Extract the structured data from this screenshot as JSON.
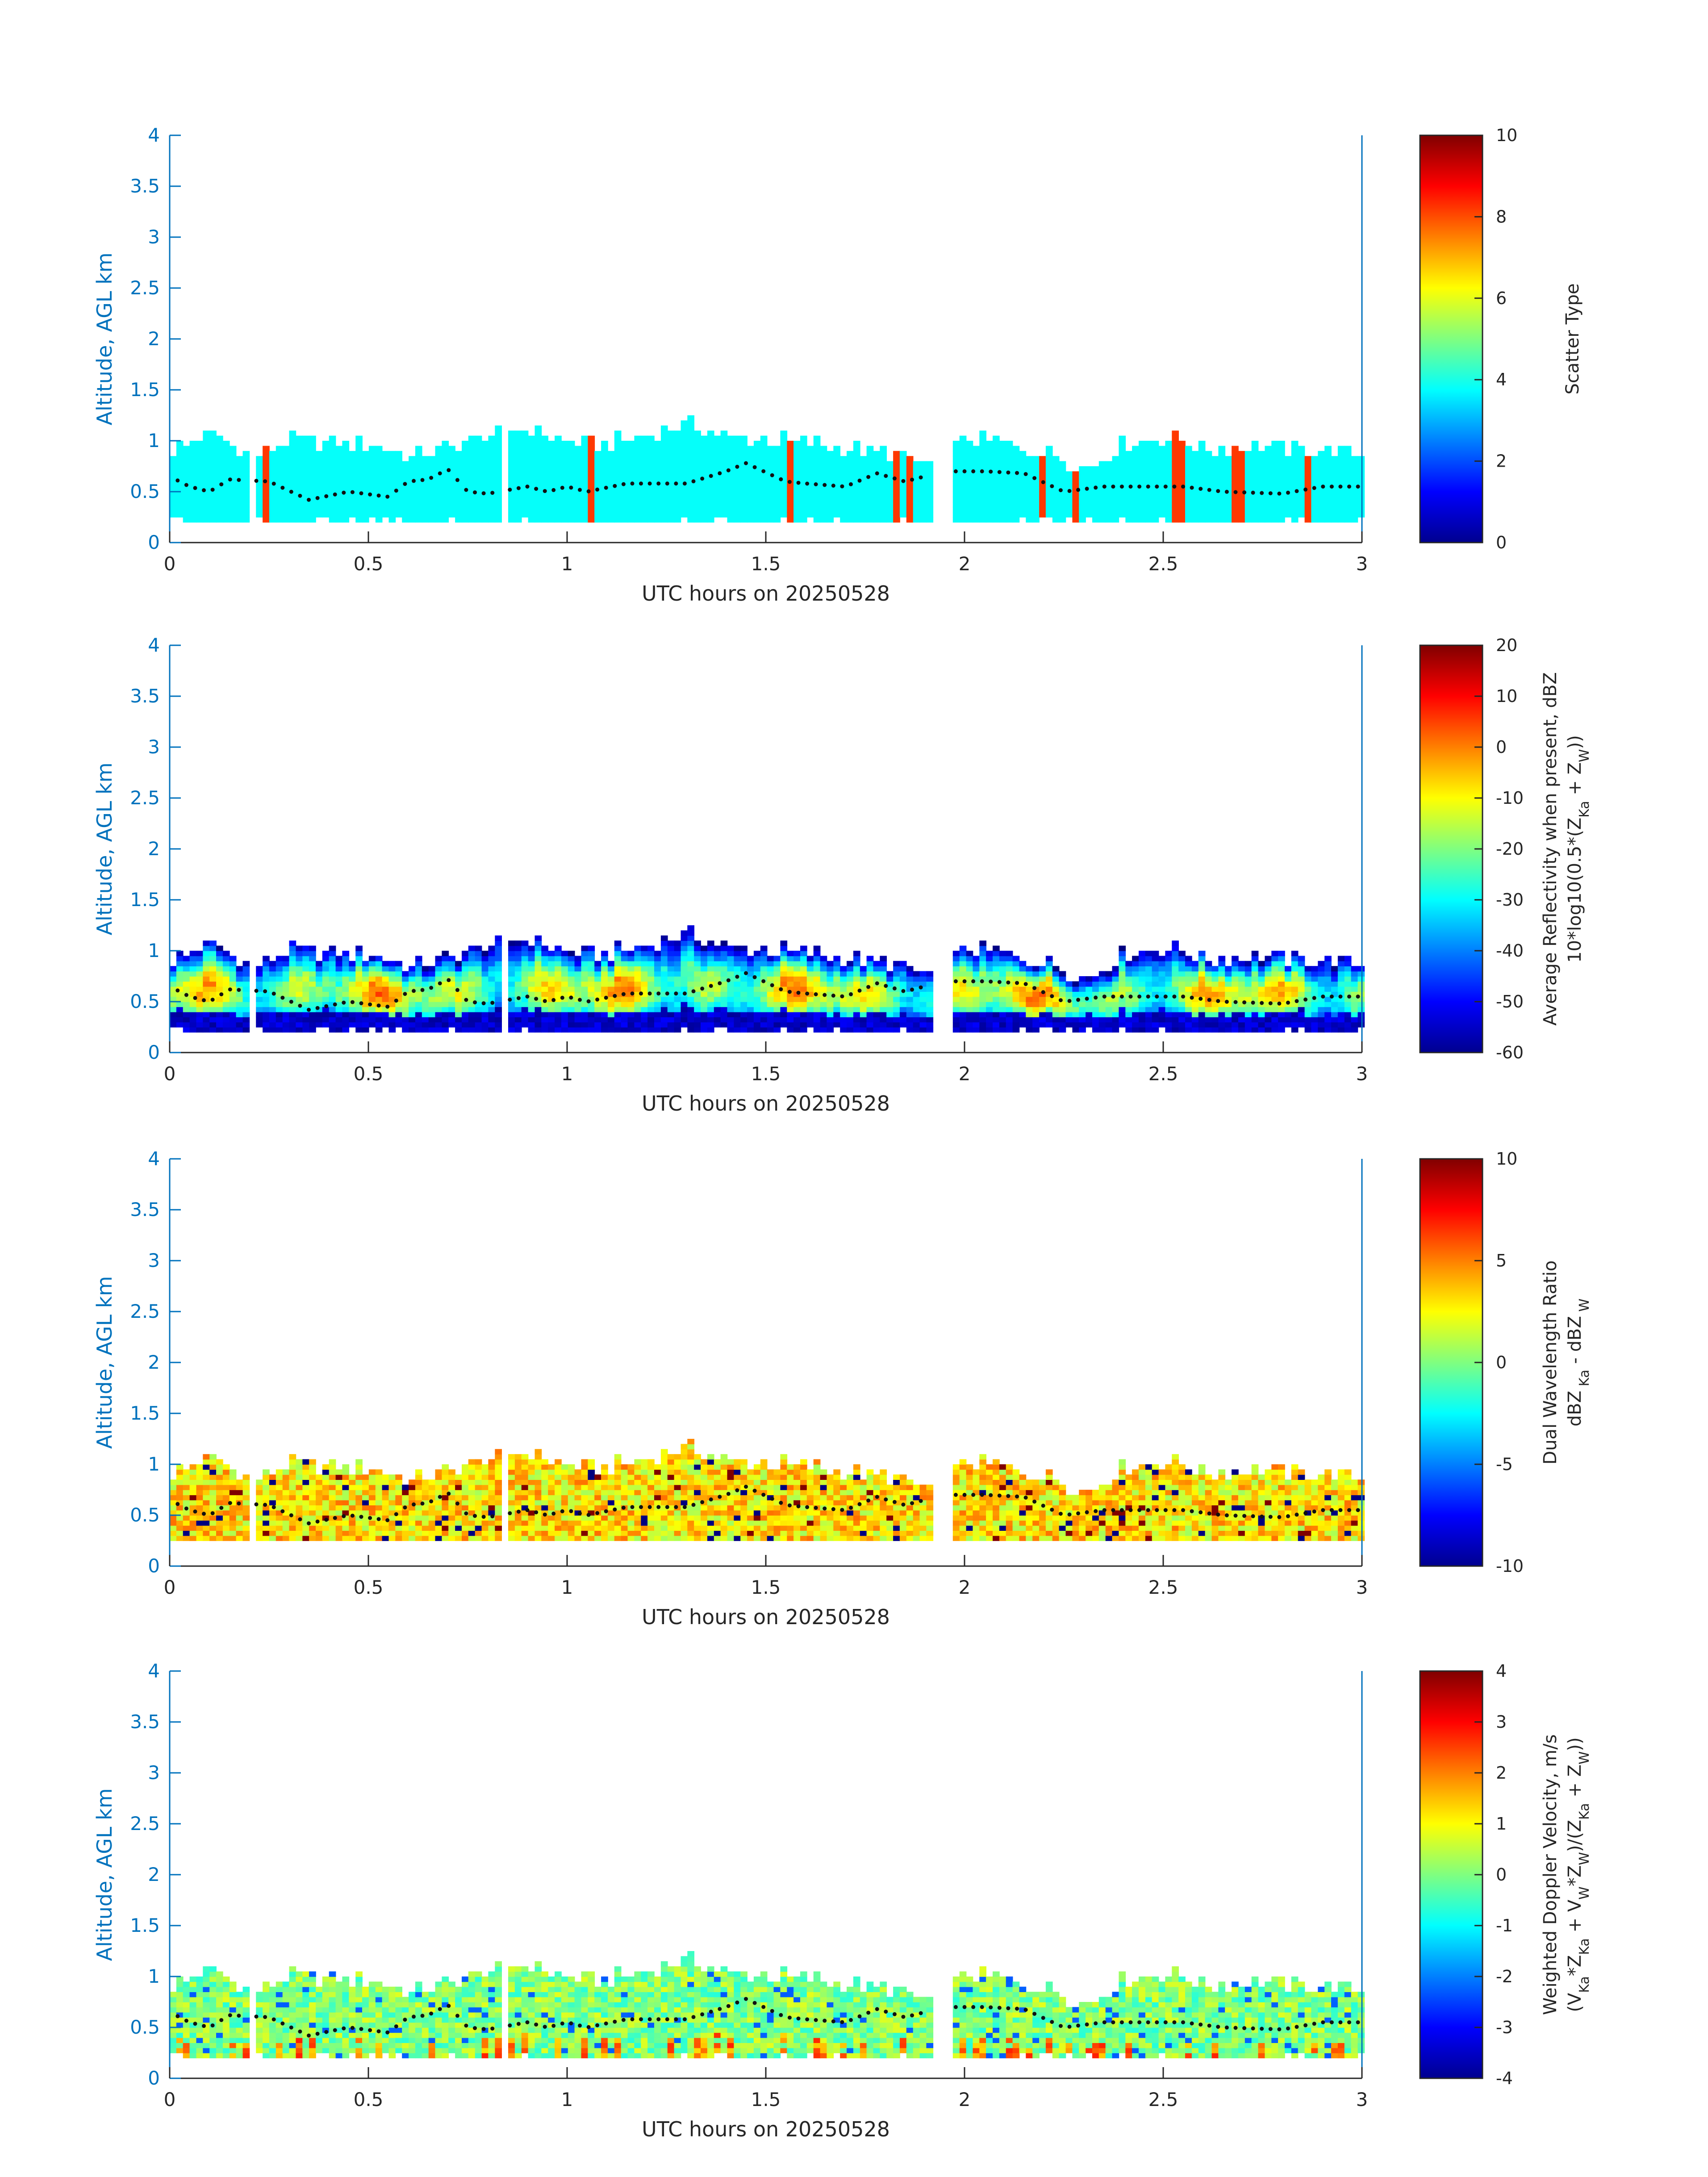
{
  "chart_data": [
    {
      "type": "heatmap",
      "xlabel": "UTC hours on 20250528",
      "ylabel": "Altitude, AGL km",
      "xlim": [
        0,
        3
      ],
      "ylim": [
        0,
        4
      ],
      "xticks": [
        "0",
        "0.5",
        "1",
        "1.5",
        "2",
        "2.5",
        "3"
      ],
      "yticks": [
        "0",
        "0.5",
        "1",
        "1.5",
        "2",
        "2.5",
        "3",
        "3.5",
        "4"
      ],
      "colorbar": {
        "label": "Scatter Type",
        "label2": "",
        "range": [
          0,
          10
        ],
        "ticks": [
          "0",
          "2",
          "4",
          "6",
          "8",
          "10"
        ],
        "colormap": "jet"
      },
      "field": "scatter_type",
      "dominant_value": 3.8,
      "secondary_value": 8.2,
      "secondary_columns_hours": [
        0.23,
        1.05,
        1.56,
        1.82,
        1.86,
        2.19,
        2.27,
        2.53,
        2.68,
        2.86
      ]
    },
    {
      "type": "heatmap",
      "xlabel": "UTC hours on 20250528",
      "ylabel": "Altitude, AGL km",
      "xlim": [
        0,
        3
      ],
      "ylim": [
        0,
        4
      ],
      "xticks": [
        "0",
        "0.5",
        "1",
        "1.5",
        "2",
        "2.5",
        "3"
      ],
      "yticks": [
        "0",
        "0.5",
        "1",
        "1.5",
        "2",
        "2.5",
        "3",
        "3.5",
        "4"
      ],
      "colorbar": {
        "label": "Average Reflectivity when present, dBZ",
        "label2": "10*log10(0.5*(Z",
        "range": [
          -60,
          20
        ],
        "ticks": [
          "-60",
          "-50",
          "-40",
          "-30",
          "-20",
          "-10",
          "0",
          "10",
          "20"
        ],
        "colormap": "jet"
      },
      "field": "reflectivity_dbz",
      "bottom_value_dbz": -58,
      "core_value_dbz": -15
    },
    {
      "type": "heatmap",
      "xlabel": "UTC hours on 20250528",
      "ylabel": "Altitude, AGL km",
      "xlim": [
        0,
        3
      ],
      "ylim": [
        0,
        4
      ],
      "xticks": [
        "0",
        "0.5",
        "1",
        "1.5",
        "2",
        "2.5",
        "3"
      ],
      "yticks": [
        "0",
        "0.5",
        "1",
        "1.5",
        "2",
        "2.5",
        "3",
        "3.5",
        "4"
      ],
      "colorbar": {
        "label": "Dual Wavelength Ratio",
        "label2": "dBZ",
        "range": [
          -10,
          10
        ],
        "ticks": [
          "-10",
          "-5",
          "0",
          "5",
          "10"
        ],
        "colormap": "jet"
      },
      "field": "dual_wavelength_ratio",
      "typical_value_db": 3
    },
    {
      "type": "heatmap",
      "xlabel": "UTC hours on 20250528",
      "ylabel": "Altitude, AGL km",
      "xlim": [
        0,
        3
      ],
      "ylim": [
        0,
        4
      ],
      "xticks": [
        "0",
        "0.5",
        "1",
        "1.5",
        "2",
        "2.5",
        "3"
      ],
      "yticks": [
        "0",
        "0.5",
        "1",
        "1.5",
        "2",
        "2.5",
        "3",
        "3.5",
        "4"
      ],
      "colorbar": {
        "label": "Weighted Doppler Velocity, m/s",
        "label2": "(V",
        "range": [
          -4,
          4
        ],
        "ticks": [
          "-4",
          "-3",
          "-2",
          "-1",
          "0",
          "1",
          "2",
          "3",
          "4"
        ],
        "colormap": "jet"
      },
      "field": "weighted_doppler_velocity",
      "typical_value_ms": 0
    }
  ],
  "cloud": {
    "time_step_hours": 0.0167,
    "echo_bottom_km": 0.2,
    "gaps_hours": [
      [
        0.19,
        0.21
      ],
      [
        0.832,
        0.848
      ],
      [
        1.91,
        1.96
      ]
    ],
    "echo_top_km": [
      [
        0.0,
        0.88
      ],
      [
        0.1,
        1.05
      ],
      [
        0.2,
        0.82
      ],
      [
        0.3,
        1.0
      ],
      [
        0.4,
        0.95
      ],
      [
        0.5,
        0.95
      ],
      [
        0.6,
        0.82
      ],
      [
        0.7,
        0.9
      ],
      [
        0.8,
        1.05
      ],
      [
        0.9,
        1.1
      ],
      [
        1.0,
        0.95
      ],
      [
        1.1,
        0.95
      ],
      [
        1.2,
        1.05
      ],
      [
        1.3,
        1.13
      ],
      [
        1.4,
        1.0
      ],
      [
        1.5,
        1.0
      ],
      [
        1.6,
        0.95
      ],
      [
        1.7,
        0.9
      ],
      [
        1.8,
        0.85
      ],
      [
        1.9,
        0.75
      ],
      [
        2.0,
        1.0
      ],
      [
        2.1,
        0.95
      ],
      [
        2.2,
        0.85
      ],
      [
        2.3,
        0.7
      ],
      [
        2.4,
        0.95
      ],
      [
        2.5,
        1.02
      ],
      [
        2.6,
        0.9
      ],
      [
        2.7,
        0.92
      ],
      [
        2.8,
        0.9
      ],
      [
        2.9,
        0.88
      ],
      [
        3.0,
        0.85
      ]
    ],
    "marker_height_km": [
      [
        0.0,
        0.65
      ],
      [
        0.05,
        0.55
      ],
      [
        0.1,
        0.5
      ],
      [
        0.15,
        0.62
      ],
      [
        0.25,
        0.6
      ],
      [
        0.35,
        0.42
      ],
      [
        0.45,
        0.5
      ],
      [
        0.55,
        0.45
      ],
      [
        0.6,
        0.6
      ],
      [
        0.65,
        0.62
      ],
      [
        0.7,
        0.72
      ],
      [
        0.75,
        0.5
      ],
      [
        0.8,
        0.48
      ],
      [
        0.9,
        0.55
      ],
      [
        0.95,
        0.5
      ],
      [
        1.0,
        0.55
      ],
      [
        1.05,
        0.5
      ],
      [
        1.15,
        0.58
      ],
      [
        1.3,
        0.58
      ],
      [
        1.4,
        0.7
      ],
      [
        1.45,
        0.78
      ],
      [
        1.55,
        0.6
      ],
      [
        1.6,
        0.58
      ],
      [
        1.7,
        0.55
      ],
      [
        1.78,
        0.68
      ],
      [
        1.85,
        0.6
      ],
      [
        1.95,
        0.7
      ],
      [
        2.05,
        0.7
      ],
      [
        2.15,
        0.68
      ],
      [
        2.25,
        0.5
      ],
      [
        2.35,
        0.55
      ],
      [
        2.45,
        0.55
      ],
      [
        2.55,
        0.55
      ],
      [
        2.65,
        0.5
      ],
      [
        2.8,
        0.48
      ],
      [
        2.9,
        0.55
      ],
      [
        3.0,
        0.55
      ]
    ]
  }
}
